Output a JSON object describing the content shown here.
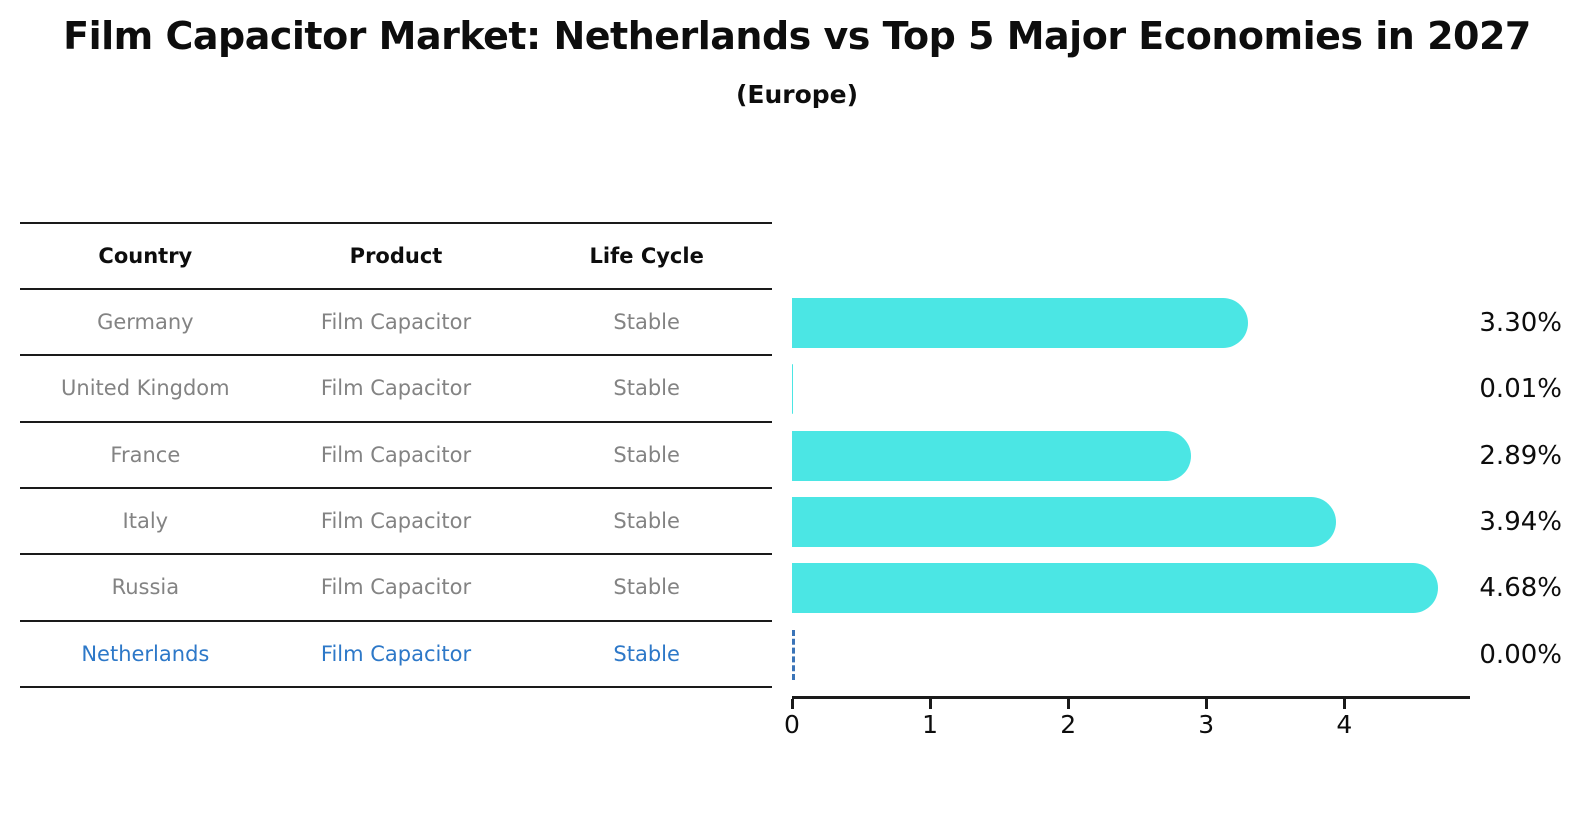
{
  "title": "Film Capacitor Market: Netherlands vs Top 5 Major Economies in 2027",
  "subtitle": "(Europe)",
  "table": {
    "headers": [
      "Country",
      "Product",
      "Life Cycle"
    ],
    "rows": [
      {
        "country": "Germany",
        "product": "Film Capacitor",
        "life_cycle": "Stable",
        "highlighted": false
      },
      {
        "country": "United Kingdom",
        "product": "Film Capacitor",
        "life_cycle": "Stable",
        "highlighted": false
      },
      {
        "country": "France",
        "product": "Film Capacitor",
        "life_cycle": "Stable",
        "highlighted": false
      },
      {
        "country": "Italy",
        "product": "Film Capacitor",
        "life_cycle": "Stable",
        "highlighted": false
      },
      {
        "country": "Russia",
        "product": "Film Capacitor",
        "life_cycle": "Stable",
        "highlighted": false
      },
      {
        "country": "Netherlands",
        "product": "Film Capacitor",
        "life_cycle": "Stable",
        "highlighted": true
      }
    ]
  },
  "chart_data": {
    "type": "bar",
    "orientation": "horizontal",
    "title": "Film Capacitor Market: Netherlands vs Top 5 Major Economies in 2027",
    "subtitle": "(Europe)",
    "categories": [
      "Germany",
      "United Kingdom",
      "France",
      "Italy",
      "Russia",
      "Netherlands"
    ],
    "values": [
      3.3,
      0.01,
      2.89,
      3.94,
      4.68,
      0.0
    ],
    "value_labels": [
      "3.30%",
      "0.01%",
      "2.89%",
      "3.94%",
      "4.68%",
      "0.00%"
    ],
    "xlabel": "",
    "ylabel": "",
    "xlim": [
      0,
      4.91
    ],
    "x_ticks": [
      0,
      1,
      2,
      3,
      4
    ],
    "grid": false,
    "legend": false,
    "bar_color": "#4be6e4",
    "highlight_index": 5,
    "highlight_color": "#2d78c8"
  }
}
